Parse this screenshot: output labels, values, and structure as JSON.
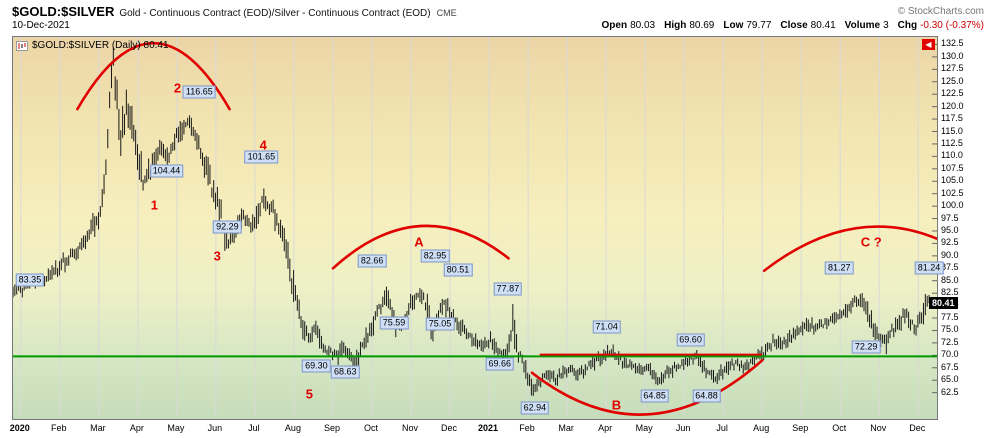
{
  "header": {
    "symbol": "$GOLD:$SILVER",
    "description": "Gold - Continuous Contract (EOD)/Silver - Continuous Contract (EOD)",
    "exchange": "CME",
    "copyright": "© StockCharts.com",
    "date": "10-Dec-2021",
    "quote": {
      "open_label": "Open",
      "open": "80.03",
      "high_label": "High",
      "high": "80.69",
      "low_label": "Low",
      "low": "79.77",
      "close_label": "Close",
      "close": "80.41",
      "volume_label": "Volume",
      "volume": "3",
      "chg_label": "Chg",
      "chg": "-0.30 (-0.37%)"
    }
  },
  "legend": {
    "label": "$GOLD:$SILVER (Daily) 80.41"
  },
  "icons": {
    "scroll_left": "◀"
  },
  "colors": {
    "red": "#e00000",
    "bar": "#181818",
    "grid": "#d9d9d9",
    "green_line": "#009900",
    "label_bg": "#cfdff6",
    "label_border": "#7d96c8",
    "last_price_bg": "#000000",
    "last_price_fg": "#ffffff",
    "bg_top": "#ecd5a7",
    "bg_upper": "#f2e6b2",
    "bg_mid": "#f6efbe",
    "bg_lower": "#eef0c6",
    "bg_green": "#d6e7c4",
    "bg_bottom": "#c6dcba"
  },
  "chart_data": {
    "type": "ohlc-bar",
    "title": "$GOLD:$SILVER (Daily)",
    "timeframe": "Daily",
    "last_price": 80.41,
    "bars_per_month": 21,
    "x_axis": {
      "m_min": -0.2,
      "m_max": 23.48,
      "labels": [
        "2020",
        "Feb",
        "Mar",
        "Apr",
        "May",
        "Jun",
        "Jul",
        "Aug",
        "Sep",
        "Oct",
        "Nov",
        "Dec",
        "2021",
        "Feb",
        "Mar",
        "Apr",
        "May",
        "Jun",
        "Jul",
        "Aug",
        "Sep",
        "Oct",
        "Nov",
        "Dec"
      ]
    },
    "y_axis": {
      "top_value": 134,
      "bottom_value": 57.2,
      "ticks": [
        "132.5",
        "130.0",
        "127.5",
        "125.0",
        "122.5",
        "120.0",
        "117.5",
        "115.0",
        "112.5",
        "110.0",
        "107.5",
        "105.0",
        "102.5",
        "100.0",
        "97.5",
        "95.0",
        "92.5",
        "90.0",
        "87.5",
        "85.0",
        "82.5",
        "80.0",
        "77.5",
        "75.0",
        "72.5",
        "70.0",
        "67.5",
        "65.0",
        "62.5"
      ]
    },
    "support_line": {
      "value": 69.8,
      "color": "#009900"
    },
    "resistance_line": {
      "value": 70.15,
      "from_m": 13.3,
      "to_m": 19.0,
      "color": "#e00000"
    },
    "arcs": [
      {
        "m": [
          1.45,
          3.4,
          5.35
        ],
        "v": [
          119.5,
          146.0,
          119.5
        ]
      },
      {
        "m": [
          8.0,
          10.25,
          12.5
        ],
        "v": [
          87.5,
          103.5,
          89.5
        ]
      },
      {
        "m": [
          13.1,
          16.05,
          19.0
        ],
        "v": [
          66.5,
          48.5,
          69.0
        ]
      },
      {
        "m": [
          19.05,
          21.6,
          24.1
        ],
        "v": [
          87.0,
          102.5,
          91.0
        ]
      }
    ],
    "price_labels": [
      {
        "text": "83.35",
        "m": 0.26,
        "v": 85.0
      },
      {
        "text": "104.44",
        "m": 3.76,
        "v": 106.8
      },
      {
        "text": "116.65",
        "m": 4.6,
        "v": 122.8
      },
      {
        "text": "92.29",
        "m": 5.32,
        "v": 95.6
      },
      {
        "text": "101.65",
        "m": 6.19,
        "v": 109.6
      },
      {
        "text": "69.30",
        "m": 7.6,
        "v": 67.6
      },
      {
        "text": "68.63",
        "m": 8.34,
        "v": 66.4
      },
      {
        "text": "82.66",
        "m": 9.03,
        "v": 88.8
      },
      {
        "text": "75.59",
        "m": 9.59,
        "v": 76.2
      },
      {
        "text": "82.95",
        "m": 10.64,
        "v": 89.8
      },
      {
        "text": "75.05",
        "m": 10.77,
        "v": 76.0
      },
      {
        "text": "80.51",
        "m": 11.23,
        "v": 87.0
      },
      {
        "text": "77.87",
        "m": 12.51,
        "v": 83.2
      },
      {
        "text": "69.66",
        "m": 12.3,
        "v": 68.0
      },
      {
        "text": "62.94",
        "m": 13.2,
        "v": 59.2
      },
      {
        "text": "71.04",
        "m": 15.04,
        "v": 75.4
      },
      {
        "text": "64.85",
        "m": 16.27,
        "v": 61.6
      },
      {
        "text": "69.60",
        "m": 17.19,
        "v": 72.8
      },
      {
        "text": "64.88",
        "m": 17.6,
        "v": 61.6
      },
      {
        "text": "81.27",
        "m": 21.0,
        "v": 87.4
      },
      {
        "text": "72.29",
        "m": 21.69,
        "v": 71.4
      },
      {
        "text": "81.24",
        "m": 23.3,
        "v": 87.4
      }
    ],
    "wave_labels": [
      {
        "text": "1",
        "m": 3.45,
        "v": 100.0
      },
      {
        "text": "2",
        "m": 4.04,
        "v": 123.6
      },
      {
        "text": "3",
        "m": 5.06,
        "v": 89.8
      },
      {
        "text": "4",
        "m": 6.24,
        "v": 112.0
      },
      {
        "text": "5",
        "m": 7.42,
        "v": 62.0
      },
      {
        "text": "A",
        "m": 10.23,
        "v": 92.6
      },
      {
        "text": "B",
        "m": 15.29,
        "v": 59.8
      },
      {
        "text": "C ?",
        "m": 21.82,
        "v": 92.6
      }
    ],
    "series_keypoints": [
      [
        -0.2,
        83.0
      ],
      [
        0.0,
        83.35
      ],
      [
        0.3,
        85.0
      ],
      [
        0.7,
        86.0
      ],
      [
        1.0,
        88.0
      ],
      [
        1.4,
        90.5
      ],
      [
        1.8,
        95.0
      ],
      [
        2.05,
        99.0
      ],
      [
        2.2,
        109.0
      ],
      [
        2.35,
        130.5
      ],
      [
        2.45,
        124.0
      ],
      [
        2.55,
        114.0
      ],
      [
        2.7,
        121.0
      ],
      [
        2.85,
        116.0
      ],
      [
        3.0,
        110.0
      ],
      [
        3.15,
        104.44
      ],
      [
        3.35,
        108.0
      ],
      [
        3.55,
        112.0
      ],
      [
        3.75,
        110.0
      ],
      [
        3.95,
        113.5
      ],
      [
        4.15,
        115.5
      ],
      [
        4.3,
        116.65
      ],
      [
        4.5,
        113.0
      ],
      [
        4.7,
        109.0
      ],
      [
        4.9,
        104.0
      ],
      [
        5.1,
        99.0
      ],
      [
        5.3,
        92.29
      ],
      [
        5.5,
        95.0
      ],
      [
        5.7,
        97.5
      ],
      [
        5.9,
        96.0
      ],
      [
        6.1,
        99.5
      ],
      [
        6.25,
        101.65
      ],
      [
        6.45,
        99.0
      ],
      [
        6.6,
        96.5
      ],
      [
        6.75,
        93.0
      ],
      [
        6.9,
        88.0
      ],
      [
        7.05,
        81.0
      ],
      [
        7.2,
        76.5
      ],
      [
        7.35,
        73.5
      ],
      [
        7.55,
        75.5
      ],
      [
        7.75,
        72.0
      ],
      [
        7.95,
        70.3
      ],
      [
        8.1,
        69.3
      ],
      [
        8.25,
        71.8
      ],
      [
        8.4,
        70.2
      ],
      [
        8.55,
        68.63
      ],
      [
        8.7,
        71.0
      ],
      [
        8.85,
        73.5
      ],
      [
        9.0,
        75.5
      ],
      [
        9.2,
        79.5
      ],
      [
        9.35,
        82.66
      ],
      [
        9.5,
        79.5
      ],
      [
        9.65,
        75.59
      ],
      [
        9.8,
        77.0
      ],
      [
        9.95,
        79.5
      ],
      [
        10.1,
        81.5
      ],
      [
        10.25,
        82.95
      ],
      [
        10.4,
        79.5
      ],
      [
        10.55,
        75.05
      ],
      [
        10.7,
        78.0
      ],
      [
        10.85,
        80.51
      ],
      [
        11.0,
        79.0
      ],
      [
        11.2,
        76.5
      ],
      [
        11.4,
        74.5
      ],
      [
        11.6,
        73.0
      ],
      [
        11.8,
        72.2
      ],
      [
        12.0,
        73.0
      ],
      [
        12.2,
        71.0
      ],
      [
        12.35,
        69.9
      ],
      [
        12.5,
        71.5
      ],
      [
        12.62,
        77.5
      ],
      [
        12.74,
        70.5
      ],
      [
        12.88,
        68.5
      ],
      [
        13.0,
        65.5
      ],
      [
        13.1,
        62.94
      ],
      [
        13.3,
        64.8
      ],
      [
        13.5,
        66.2
      ],
      [
        13.7,
        65.2
      ],
      [
        13.9,
        66.8
      ],
      [
        14.1,
        67.6
      ],
      [
        14.3,
        66.2
      ],
      [
        14.5,
        67.8
      ],
      [
        14.7,
        68.6
      ],
      [
        14.9,
        69.8
      ],
      [
        15.1,
        71.04
      ],
      [
        15.3,
        69.8
      ],
      [
        15.5,
        68.2
      ],
      [
        15.7,
        67.6
      ],
      [
        15.9,
        67.2
      ],
      [
        16.05,
        67.8
      ],
      [
        16.2,
        66.0
      ],
      [
        16.35,
        64.85
      ],
      [
        16.55,
        66.2
      ],
      [
        16.75,
        67.6
      ],
      [
        16.95,
        68.2
      ],
      [
        17.15,
        69.2
      ],
      [
        17.3,
        69.6
      ],
      [
        17.5,
        67.8
      ],
      [
        17.65,
        66.4
      ],
      [
        17.8,
        64.88
      ],
      [
        17.95,
        66.4
      ],
      [
        18.15,
        67.8
      ],
      [
        18.35,
        68.4
      ],
      [
        18.55,
        67.8
      ],
      [
        18.75,
        69.0
      ],
      [
        18.95,
        70.0
      ],
      [
        19.15,
        71.4
      ],
      [
        19.35,
        73.0
      ],
      [
        19.55,
        72.2
      ],
      [
        19.75,
        74.0
      ],
      [
        19.95,
        75.0
      ],
      [
        20.15,
        76.4
      ],
      [
        20.35,
        75.6
      ],
      [
        20.55,
        76.2
      ],
      [
        20.75,
        77.0
      ],
      [
        20.95,
        77.8
      ],
      [
        21.15,
        79.2
      ],
      [
        21.35,
        80.6
      ],
      [
        21.55,
        81.27
      ],
      [
        21.7,
        78.5
      ],
      [
        21.85,
        75.5
      ],
      [
        22.0,
        73.8
      ],
      [
        22.15,
        72.29
      ],
      [
        22.3,
        74.8
      ],
      [
        22.5,
        76.6
      ],
      [
        22.65,
        78.2
      ],
      [
        22.8,
        76.6
      ],
      [
        22.95,
        75.6
      ],
      [
        23.05,
        77.2
      ],
      [
        23.15,
        79.0
      ],
      [
        23.25,
        81.24
      ],
      [
        23.32,
        80.41
      ]
    ]
  }
}
